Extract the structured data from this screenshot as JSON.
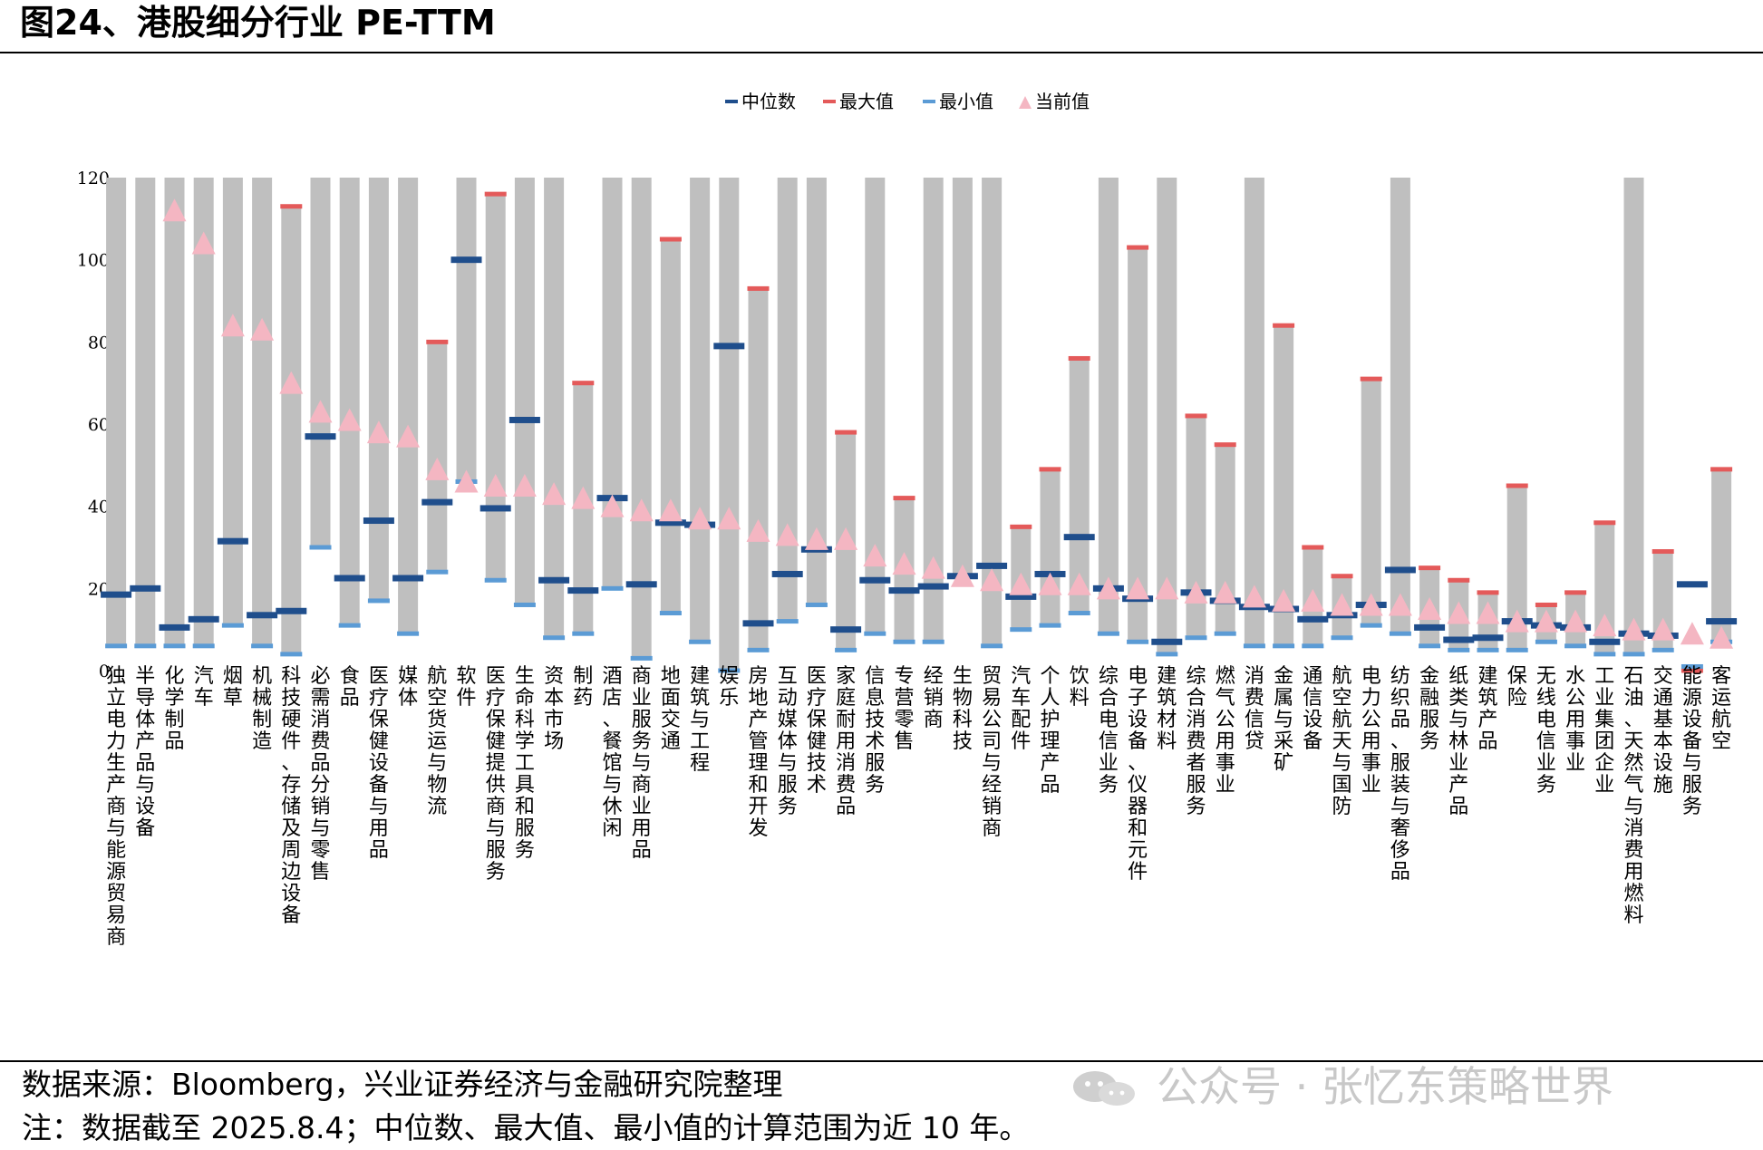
{
  "figure": {
    "title": "图24、港股细分行业 PE-TTM",
    "source": "数据来源：Bloomberg，兴业证券经济与金融研究院整理",
    "note": "注：数据截至 2025.8.4；中位数、最大值、最小值的计算范围为近 10 年。",
    "watermark": "公众号 · 张忆东策略世界"
  },
  "chart_data": {
    "type": "bar",
    "ylim": [
      0,
      120
    ],
    "yticks": [
      0,
      20,
      40,
      60,
      80,
      100,
      120
    ],
    "legend_position": "top-center",
    "legend": [
      {
        "label": "中位数",
        "marker": "dash",
        "color": "#1f4e8c"
      },
      {
        "label": "最大值",
        "marker": "dash",
        "color": "#e45a5a"
      },
      {
        "label": "最小值",
        "marker": "dash",
        "color": "#5b9bd5"
      },
      {
        "label": "当前值",
        "marker": "triangle",
        "color": "#f4b6c2"
      }
    ],
    "colors": {
      "range_bar": "#bfbfbf",
      "median": "#1f4e8c",
      "max": "#e45a5a",
      "min": "#5b9bd5",
      "current": "#f4b6c2"
    },
    "categories": [
      "独立电力生产商与能源贸易商",
      "半导体产品与设备",
      "化学制品",
      "汽车",
      "烟草",
      "机械制造",
      "科技硬件、存储及周边设备",
      "必需消费品分销与零售",
      "食品",
      "医疗保健设备与用品",
      "媒体",
      "航空货运与物流",
      "软件",
      "医疗保健提供商与服务",
      "生命科学工具和服务",
      "资本市场",
      "制药",
      "酒店、餐馆与休闲",
      "商业服务与商业用品",
      "地面交通",
      "建筑与工程",
      "娱乐",
      "房地产管理和开发",
      "互动媒体与服务",
      "医疗保健技术",
      "家庭耐用消费品",
      "信息技术服务",
      "专营零售",
      "经销商",
      "生物科技",
      "贸易公司与经销商",
      "汽车配件",
      "个人护理产品",
      "饮料",
      "综合电信业务",
      "电子设备、仪器和元件",
      "建筑材料",
      "综合消费者服务",
      "燃气公用事业",
      "消费信贷",
      "金属与采矿",
      "通信设备",
      "航空航天与国防",
      "电力公用事业",
      "纺织品、服装与奢侈品",
      "金融服务",
      "纸类与林业产品",
      "建筑产品",
      "保险",
      "无线电信业务",
      "水公用事业",
      "工业集团企业",
      "石油、天然气与消费用燃料",
      "交通基本设施",
      "能源设备与服务",
      "客运航空"
    ],
    "series": [
      {
        "name": "最大值",
        "values": [
          120,
          120,
          120,
          120,
          120,
          120,
          113,
          120,
          120,
          120,
          120,
          80,
          120,
          116,
          120,
          120,
          70,
          120,
          120,
          105,
          120,
          120,
          93,
          120,
          120,
          58,
          120,
          42,
          120,
          120,
          120,
          35,
          49,
          76,
          120,
          103,
          120,
          62,
          55,
          120,
          84,
          30,
          23,
          71,
          120,
          25,
          22,
          19,
          45,
          16,
          19,
          36,
          120,
          29,
          0,
          49
        ]
      },
      {
        "name": "最小值",
        "values": [
          6,
          6,
          6,
          6,
          11,
          6,
          4,
          30,
          11,
          17,
          9,
          24,
          46,
          22,
          16,
          8,
          9,
          20,
          3,
          14,
          7,
          0,
          5,
          12,
          16,
          5,
          9,
          7,
          7,
          23,
          6,
          10,
          11,
          14,
          9,
          7,
          4,
          8,
          9,
          6,
          6,
          6,
          8,
          11,
          9,
          6,
          5,
          5,
          5,
          7,
          6,
          4,
          4,
          5,
          1,
          7
        ]
      },
      {
        "name": "中位数",
        "values": [
          18.5,
          20,
          10.5,
          12.5,
          31.5,
          13.5,
          14.5,
          57,
          22.5,
          36.5,
          22.5,
          41,
          100,
          39.5,
          61,
          22,
          19.5,
          42,
          21,
          36,
          35.5,
          79,
          11.5,
          23.5,
          29.5,
          10,
          22,
          19.5,
          20.5,
          23,
          25.5,
          18,
          23.5,
          32.5,
          20,
          17.5,
          7,
          19,
          17,
          15.5,
          15,
          12.5,
          13.5,
          16,
          24.5,
          10.5,
          7.5,
          8,
          12,
          11,
          10.5,
          7,
          9,
          8.5,
          21,
          12
        ]
      },
      {
        "name": "当前值",
        "values": [
          null,
          null,
          112,
          104,
          84,
          83,
          70,
          63,
          61,
          58,
          57,
          49,
          46,
          45,
          45,
          43,
          42,
          40,
          39,
          39,
          37,
          37,
          34,
          33,
          32,
          32,
          28,
          26,
          25,
          23,
          22,
          21,
          21,
          21,
          20,
          20,
          20,
          19,
          19,
          18,
          17,
          17,
          16,
          16,
          16,
          15,
          14,
          14,
          12,
          12,
          12,
          11,
          10,
          10,
          9,
          8
        ]
      }
    ]
  }
}
